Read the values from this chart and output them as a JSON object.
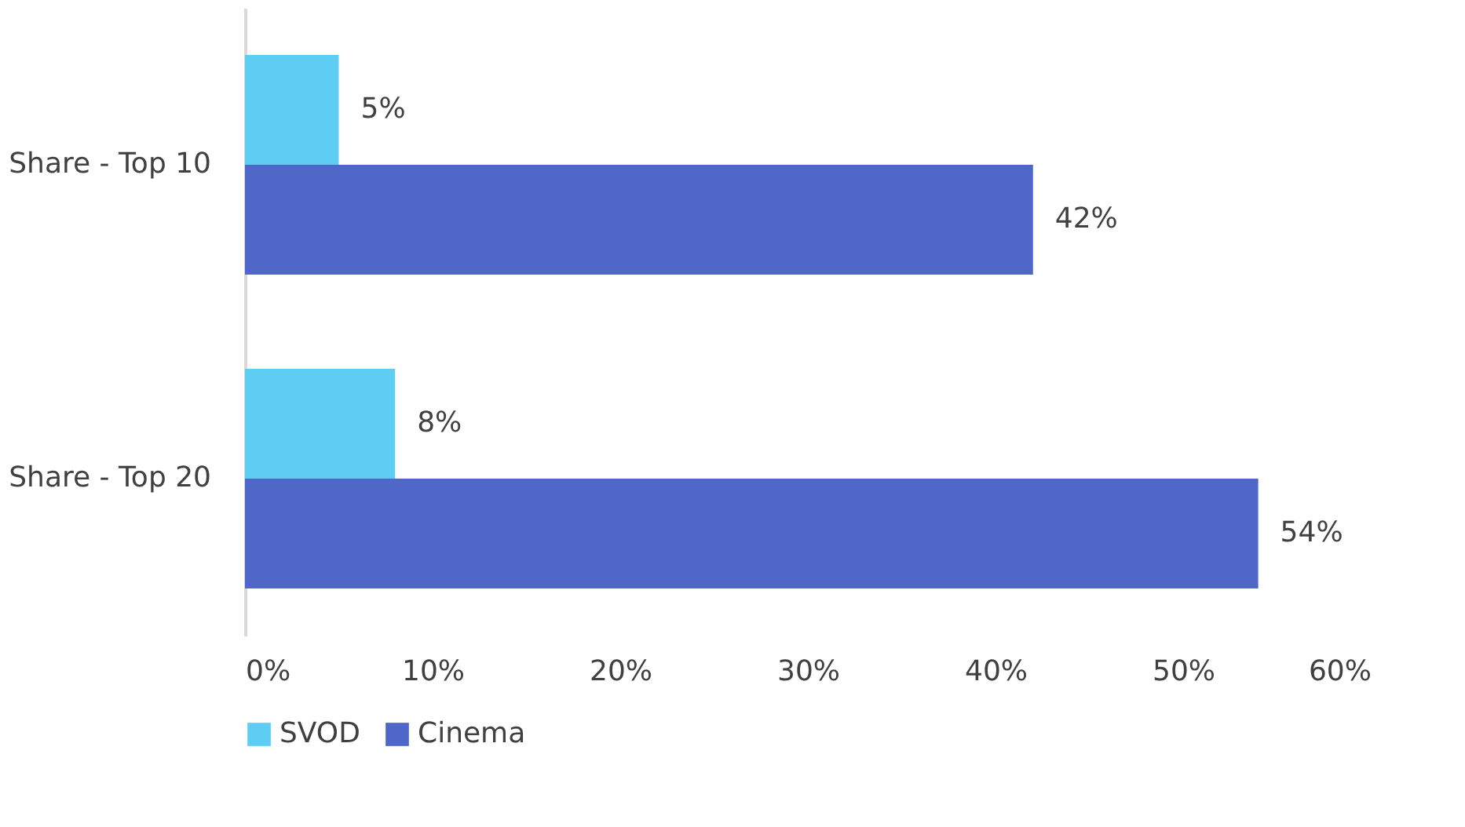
{
  "chart_data": {
    "type": "bar",
    "orientation": "horizontal",
    "categories": [
      "Share - Top 10",
      "Share - Top 20"
    ],
    "series": [
      {
        "name": "SVOD",
        "color": "#5ecdf3",
        "values": [
          5,
          8
        ]
      },
      {
        "name": "Cinema",
        "color": "#4f67c8",
        "values": [
          42,
          54
        ]
      }
    ],
    "xlim": [
      0,
      60
    ],
    "xticks": [
      {
        "value": 0,
        "label": "0%"
      },
      {
        "value": 10,
        "label": "10%"
      },
      {
        "value": 20,
        "label": "20%"
      },
      {
        "value": 30,
        "label": "30%"
      },
      {
        "value": 40,
        "label": "40%"
      },
      {
        "value": 50,
        "label": "50%"
      },
      {
        "value": 60,
        "label": "60%"
      }
    ],
    "value_labels": [
      [
        "5%",
        "8%"
      ],
      [
        "42%",
        "54%"
      ]
    ],
    "grid": false,
    "legend": "bottom"
  }
}
